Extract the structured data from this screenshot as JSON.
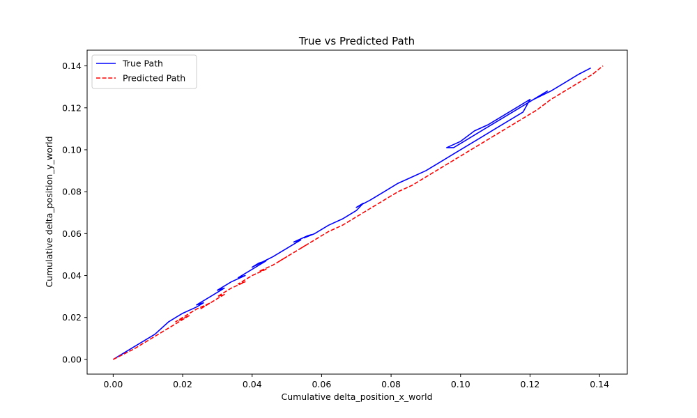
{
  "chart_data": {
    "type": "line",
    "title": "True vs Predicted Path",
    "xlabel": "Cumulative delta_position_x_world",
    "ylabel": "Cumulative delta_position_y_world",
    "xlim": [
      -0.0075,
      0.148
    ],
    "ylim": [
      -0.007,
      0.1475
    ],
    "x_ticks": [
      0.0,
      0.02,
      0.04,
      0.06,
      0.08,
      0.1,
      0.12,
      0.14
    ],
    "x_tick_labels": [
      "0.00",
      "0.02",
      "0.04",
      "0.06",
      "0.08",
      "0.10",
      "0.12",
      "0.14"
    ],
    "y_ticks": [
      0.0,
      0.02,
      0.04,
      0.06,
      0.08,
      0.1,
      0.12,
      0.14
    ],
    "y_tick_labels": [
      "0.00",
      "0.02",
      "0.04",
      "0.06",
      "0.08",
      "0.10",
      "0.12",
      "0.14"
    ],
    "grid": false,
    "legend": "upper-left",
    "series": [
      {
        "name": "True Path",
        "color": "#0000ff",
        "style": "solid",
        "x": [
          0.0,
          0.006,
          0.012,
          0.016,
          0.02,
          0.024,
          0.026,
          0.024,
          0.028,
          0.032,
          0.03,
          0.034,
          0.038,
          0.036,
          0.04,
          0.044,
          0.042,
          0.04,
          0.046,
          0.05,
          0.054,
          0.052,
          0.056,
          0.057,
          0.055,
          0.058,
          0.062,
          0.066,
          0.07,
          0.072,
          0.07,
          0.074,
          0.078,
          0.082,
          0.086,
          0.09,
          0.094,
          0.098,
          0.102,
          0.106,
          0.11,
          0.114,
          0.118,
          0.12,
          0.116,
          0.112,
          0.108,
          0.104,
          0.1,
          0.096,
          0.098,
          0.102,
          0.106,
          0.11,
          0.114,
          0.118,
          0.122,
          0.125,
          0.121,
          0.126,
          0.13,
          0.134,
          0.1375
        ],
        "y": [
          0.0,
          0.006,
          0.012,
          0.018,
          0.022,
          0.025,
          0.027,
          0.026,
          0.03,
          0.034,
          0.033,
          0.037,
          0.04,
          0.039,
          0.043,
          0.047,
          0.046,
          0.044,
          0.049,
          0.053,
          0.057,
          0.056,
          0.059,
          0.0595,
          0.058,
          0.06,
          0.064,
          0.067,
          0.071,
          0.0745,
          0.0725,
          0.076,
          0.08,
          0.084,
          0.087,
          0.09,
          0.094,
          0.098,
          0.102,
          0.106,
          0.11,
          0.114,
          0.118,
          0.124,
          0.12,
          0.116,
          0.112,
          0.109,
          0.104,
          0.101,
          0.101,
          0.105,
          0.109,
          0.113,
          0.117,
          0.121,
          0.125,
          0.128,
          0.124,
          0.128,
          0.132,
          0.136,
          0.139
        ]
      },
      {
        "name": "Predicted Path",
        "color": "#ff0000",
        "style": "dashed",
        "x": [
          0.0,
          0.006,
          0.012,
          0.016,
          0.02,
          0.022,
          0.018,
          0.02,
          0.024,
          0.028,
          0.025,
          0.029,
          0.032,
          0.03,
          0.034,
          0.038,
          0.036,
          0.04,
          0.044,
          0.042,
          0.046,
          0.05,
          0.048,
          0.052,
          0.056,
          0.054,
          0.058,
          0.062,
          0.066,
          0.07,
          0.072,
          0.074,
          0.078,
          0.082,
          0.086,
          0.09,
          0.094,
          0.098,
          0.102,
          0.106,
          0.11,
          0.114,
          0.118,
          0.122,
          0.126,
          0.13,
          0.134,
          0.138,
          0.141
        ],
        "y": [
          0.0,
          0.005,
          0.011,
          0.015,
          0.019,
          0.021,
          0.018,
          0.02,
          0.024,
          0.027,
          0.024,
          0.028,
          0.031,
          0.03,
          0.034,
          0.037,
          0.036,
          0.04,
          0.043,
          0.042,
          0.045,
          0.049,
          0.047,
          0.051,
          0.055,
          0.053,
          0.057,
          0.061,
          0.064,
          0.068,
          0.07,
          0.072,
          0.076,
          0.08,
          0.083,
          0.087,
          0.091,
          0.095,
          0.099,
          0.103,
          0.107,
          0.111,
          0.115,
          0.119,
          0.124,
          0.128,
          0.132,
          0.136,
          0.14
        ]
      }
    ]
  }
}
